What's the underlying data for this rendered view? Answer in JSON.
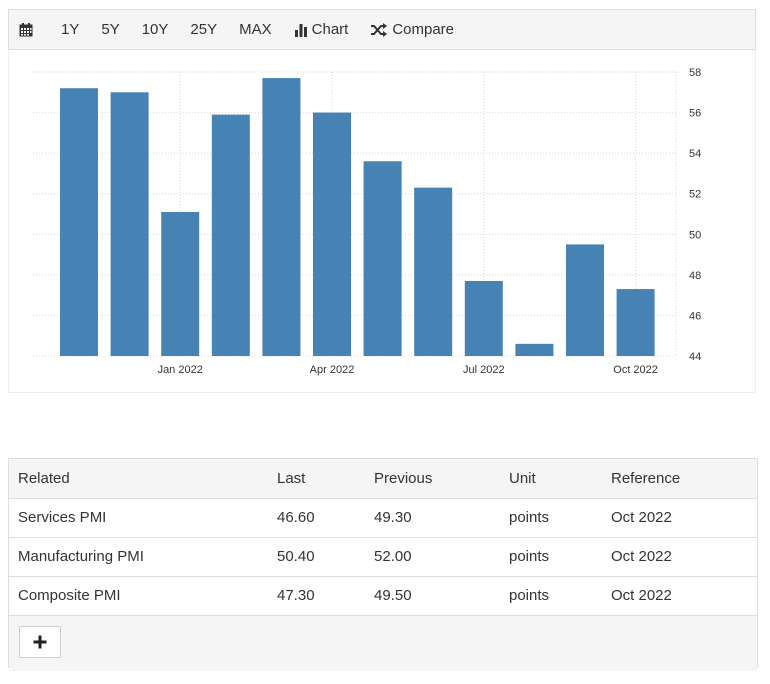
{
  "toolbar": {
    "calendar_icon": "calendar-icon",
    "ranges": [
      "1Y",
      "5Y",
      "10Y",
      "25Y",
      "MAX"
    ],
    "chart_label": "Chart",
    "compare_label": "Compare"
  },
  "chart_data": {
    "type": "bar",
    "title": "",
    "xlabel": "",
    "ylabel": "",
    "x": [
      "Nov 2021",
      "Dec 2021",
      "Jan 2022",
      "Feb 2022",
      "Mar 2022",
      "Apr 2022",
      "May 2022",
      "Jun 2022",
      "Jul 2022",
      "Aug 2022",
      "Sep 2022",
      "Oct 2022"
    ],
    "values": [
      57.2,
      57.0,
      51.1,
      55.9,
      57.7,
      56.0,
      53.6,
      52.3,
      47.7,
      44.6,
      49.5,
      47.3
    ],
    "x_tick_labels": [
      {
        "at": "Jan 2022",
        "label": "Jan 2022"
      },
      {
        "at": "Apr 2022",
        "label": "Apr 2022"
      },
      {
        "at": "Jul 2022",
        "label": "Jul 2022"
      },
      {
        "at": "Oct 2022",
        "label": "Oct 2022"
      }
    ],
    "y_ticks": [
      44,
      46,
      48,
      50,
      52,
      54,
      56,
      58
    ],
    "ylim": [
      44,
      58
    ],
    "y_axis_side": "right",
    "grid": true,
    "bar_color": "#4682b4"
  },
  "related": {
    "headers": [
      "Related",
      "Last",
      "Previous",
      "Unit",
      "Reference"
    ],
    "rows": [
      {
        "name": "Services PMI",
        "last": "46.60",
        "previous": "49.30",
        "unit": "points",
        "reference": "Oct 2022"
      },
      {
        "name": "Manufacturing PMI",
        "last": "50.40",
        "previous": "52.00",
        "unit": "points",
        "reference": "Oct 2022"
      },
      {
        "name": "Composite PMI",
        "last": "47.30",
        "previous": "49.50",
        "unit": "points",
        "reference": "Oct 2022"
      }
    ],
    "add_label": "+"
  }
}
